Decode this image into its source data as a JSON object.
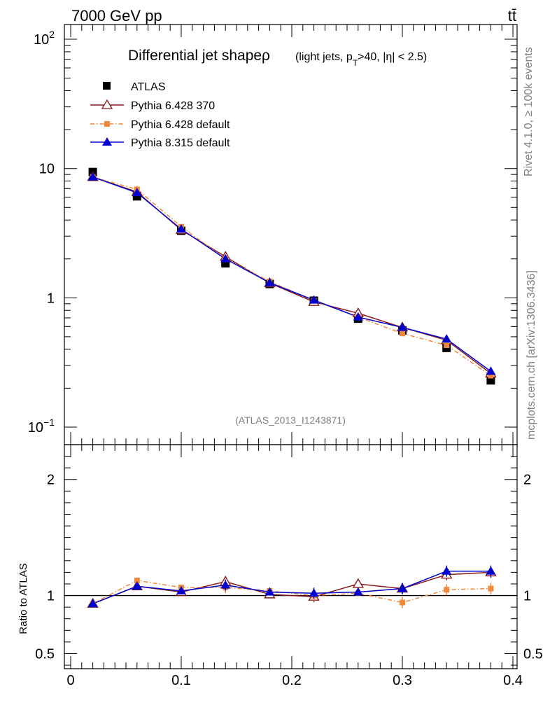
{
  "header": {
    "left": "7000 GeV pp",
    "right": "tt̄"
  },
  "side": {
    "rivet": "Rivet 4.1.0, ≥ 100k events",
    "mcplots": "mcplots.cern.ch [arXiv:1306.3436]"
  },
  "chart_data": {
    "type": "line",
    "title_main": "Differential jet shapeρ",
    "title_sub": "(light jets, p",
    "title_sub_t": "T",
    "title_sub_rest": ">40, |η| < 2.5)",
    "watermark": "(ATLAS_2013_I1243871)",
    "x": [
      0.02,
      0.06,
      0.1,
      0.14,
      0.18,
      0.22,
      0.26,
      0.3,
      0.34,
      0.38
    ],
    "xlim": [
      0,
      0.4
    ],
    "ylim": [
      0.1,
      130
    ],
    "yscale": "log",
    "y_ticks": [
      {
        "value": 100,
        "base": "10",
        "exp": "2"
      },
      {
        "value": 10,
        "base": "10",
        "exp": ""
      },
      {
        "value": 1,
        "base": "1",
        "exp": ""
      },
      {
        "value": 0.1,
        "base": "10",
        "exp": "−1"
      }
    ],
    "x_ticks": [
      {
        "value": 0,
        "label": "0"
      },
      {
        "value": 0.1,
        "label": "0.1"
      },
      {
        "value": 0.2,
        "label": "0.2"
      },
      {
        "value": 0.3,
        "label": "0.3"
      },
      {
        "value": 0.4,
        "label": "0.4"
      }
    ],
    "data": {
      "name": "ATLAS",
      "values": [
        9.4,
        6.1,
        3.3,
        1.85,
        1.28,
        0.95,
        0.69,
        0.56,
        0.41,
        0.23
      ]
    },
    "series": [
      {
        "name": "Pythia 6.428 370",
        "color": "#8b1a1a",
        "marker": "open-triangle",
        "dash": "solid",
        "values": [
          8.6,
          6.6,
          3.35,
          2.08,
          1.3,
          0.93,
          0.76,
          0.59,
          0.47,
          0.26
        ]
      },
      {
        "name": "Pythia 6.428 default",
        "color": "#f0883a",
        "marker": "square",
        "dash": "dashdot",
        "values": [
          8.6,
          6.9,
          3.55,
          2.0,
          1.34,
          0.95,
          0.71,
          0.53,
          0.43,
          0.25
        ]
      },
      {
        "name": "Pythia 8.315 default",
        "color": "#0000d0",
        "marker": "triangle",
        "dash": "solid",
        "values": [
          8.6,
          6.5,
          3.4,
          2.0,
          1.31,
          0.96,
          0.71,
          0.59,
          0.48,
          0.27
        ]
      }
    ],
    "ratio": {
      "ylabel": "Ratio to ATLAS",
      "ylim": [
        0.37,
        2.3
      ],
      "y_ticks": [
        {
          "value": 2,
          "label": "2"
        },
        {
          "value": 1,
          "label": "1"
        },
        {
          "value": 0.5,
          "label": "0.5"
        }
      ],
      "series": [
        [
          0.93,
          1.08,
          1.03,
          1.12,
          1.01,
          0.99,
          1.1,
          1.06,
          1.18,
          1.2
        ],
        [
          0.93,
          1.13,
          1.07,
          1.07,
          1.04,
          1.0,
          1.02,
          0.94,
          1.05,
          1.06
        ],
        [
          0.93,
          1.08,
          1.04,
          1.09,
          1.03,
          1.02,
          1.03,
          1.06,
          1.21,
          1.21
        ]
      ]
    }
  }
}
